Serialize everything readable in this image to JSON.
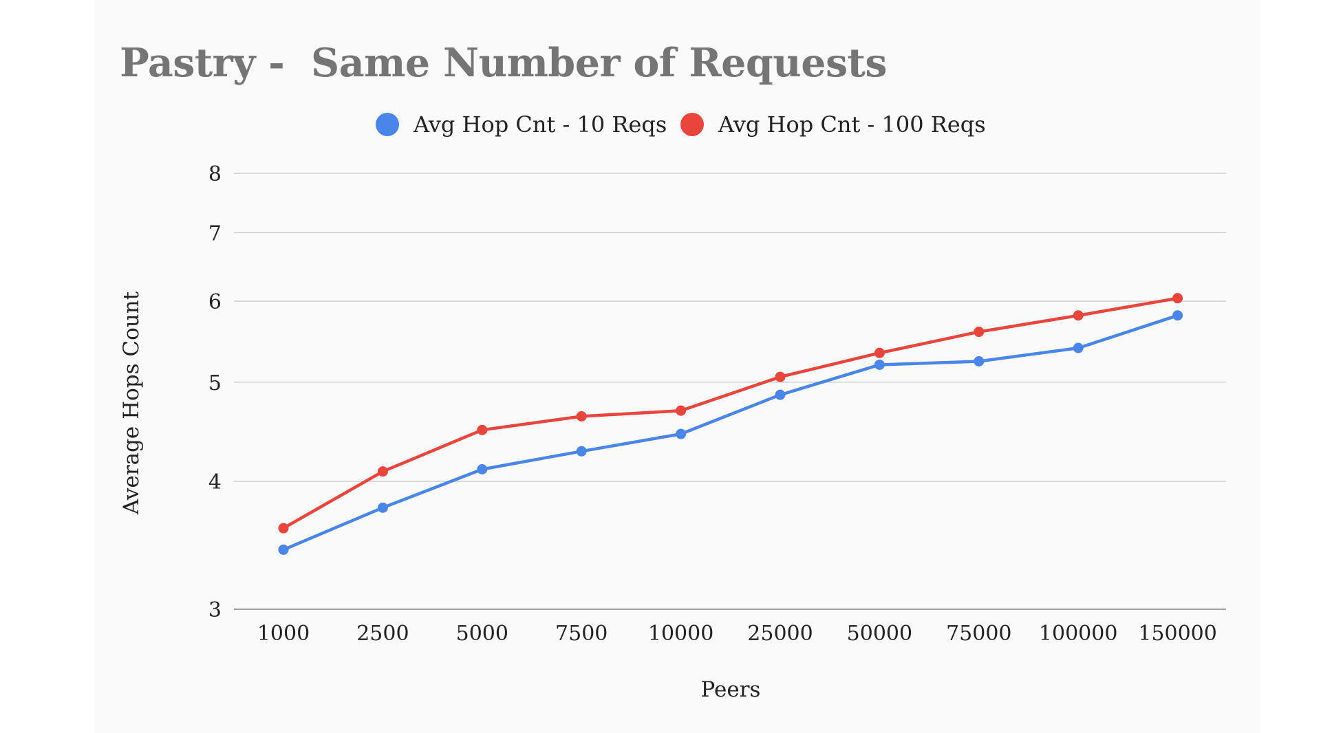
{
  "chart_data": {
    "type": "line",
    "title": "Pastry -  Same Number of Requests",
    "xlabel": "Peers",
    "ylabel": "Average Hops Count",
    "categories": [
      "1000",
      "2500",
      "5000",
      "7500",
      "10000",
      "25000",
      "50000",
      "75000",
      "100000",
      "150000"
    ],
    "y_scale": "log",
    "ylim": [
      3,
      8
    ],
    "yticks": [
      3,
      4,
      5,
      6,
      7,
      8
    ],
    "grid": true,
    "legend_position": "top-center",
    "series": [
      {
        "name": "Avg Hop Cnt - 10 Reqs",
        "color": "#4a86e8",
        "values": [
          3.43,
          3.77,
          4.11,
          4.28,
          4.45,
          4.86,
          5.2,
          5.24,
          5.4,
          5.81
        ]
      },
      {
        "name": "Avg Hop Cnt - 100 Reqs",
        "color": "#e8453c",
        "values": [
          3.6,
          4.09,
          4.49,
          4.63,
          4.69,
          5.06,
          5.34,
          5.6,
          5.81,
          6.04
        ]
      }
    ]
  }
}
